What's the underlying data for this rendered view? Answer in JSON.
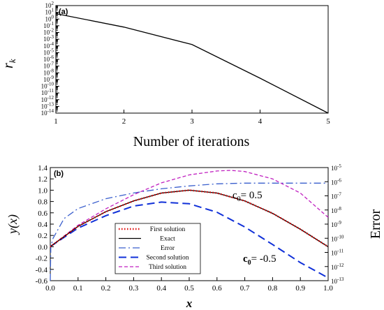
{
  "chart_data": [
    {
      "panel_label": "(a)",
      "type": "line",
      "xlabel": "Number of iterations",
      "ylabel_base": "r",
      "ylabel_sub": "k",
      "y_scale": "log",
      "x_ticks": [
        "1",
        "2",
        "3",
        "4",
        "5"
      ],
      "y_tick_exponents": [
        2,
        1,
        0,
        -1,
        -2,
        -3,
        -4,
        -5,
        -6,
        -7,
        -8,
        -9,
        -10,
        -11,
        -12,
        -13,
        -14
      ],
      "y_tick_base": "10",
      "xlim": [
        1,
        5
      ],
      "ylim_log10": [
        -14,
        2
      ],
      "x": [
        1,
        2,
        3,
        4,
        5
      ],
      "log10_y": [
        0.8,
        -1.2,
        -3.8,
        -8.8,
        -14.0
      ],
      "grid": false
    },
    {
      "panel_label": "(b)",
      "type": "line",
      "xlabel": "x",
      "ylabel_left": "y(x)",
      "ylabel_right": "Error",
      "xlim": [
        0,
        1
      ],
      "ylim_left": [
        -0.6,
        1.4
      ],
      "ylim_right_log10": [
        -13,
        -5
      ],
      "x_ticks": [
        "0.0",
        "0.1",
        "0.2",
        "0.3",
        "0.4",
        "0.5",
        "0.6",
        "0.7",
        "0.8",
        "0.9",
        "1.0"
      ],
      "y_left_ticks": [
        "-0.6",
        "-0.4",
        "-0.2",
        "0.0",
        "0.2",
        "0.4",
        "0.6",
        "0.8",
        "1.0",
        "1.2",
        "1.4"
      ],
      "y_right_tick_exponents": [
        -5,
        -6,
        -7,
        -8,
        -9,
        -10,
        -11,
        -12,
        -13
      ],
      "y_right_tick_base": "10",
      "grid": false,
      "legend_position": "bottom-left",
      "annotations": [
        {
          "text_base": "c",
          "text_sub": "0",
          "text_rest": "= 0.5"
        },
        {
          "text_base": "c",
          "text_sub": "0",
          "text_rest": "= -0.5"
        }
      ],
      "series": [
        {
          "name": "First solution",
          "color": "#e01010",
          "style": "dotted",
          "axis": "left",
          "x": [
            0.0,
            0.005,
            0.1,
            0.2,
            0.3,
            0.4,
            0.5,
            0.6,
            0.7,
            0.8,
            0.9,
            1.0
          ],
          "y": [
            0.0,
            0.02,
            0.36,
            0.62,
            0.81,
            0.95,
            1.0,
            0.95,
            0.81,
            0.59,
            0.31,
            0.0
          ]
        },
        {
          "name": "Exact",
          "color": "#000000",
          "style": "solid",
          "axis": "left",
          "x": [
            0.0,
            0.005,
            0.1,
            0.2,
            0.3,
            0.4,
            0.5,
            0.6,
            0.7,
            0.8,
            0.9,
            1.0
          ],
          "y": [
            0.0,
            0.02,
            0.36,
            0.62,
            0.81,
            0.95,
            1.0,
            0.95,
            0.81,
            0.59,
            0.31,
            0.0
          ]
        },
        {
          "name": "Error",
          "color": "#3a5fcd",
          "style": "dashdot",
          "axis": "right",
          "x": [
            0.0,
            0.002,
            0.01,
            0.05,
            0.1,
            0.2,
            0.3,
            0.4,
            0.5,
            0.6,
            0.7,
            0.8,
            0.9,
            1.0
          ],
          "log10_y": [
            -13.0,
            -10.6,
            -10.0,
            -8.6,
            -7.9,
            -7.2,
            -6.8,
            -6.5,
            -6.3,
            -6.15,
            -6.1,
            -6.1,
            -6.1,
            -6.1
          ]
        },
        {
          "name": "Second solution",
          "color": "#1030d8",
          "style": "longdash",
          "axis": "left",
          "x": [
            0.0,
            0.005,
            0.1,
            0.2,
            0.3,
            0.4,
            0.5,
            0.6,
            0.7,
            0.8,
            0.9,
            1.0
          ],
          "y": [
            0.0,
            0.02,
            0.33,
            0.55,
            0.72,
            0.79,
            0.76,
            0.61,
            0.35,
            0.04,
            -0.28,
            -0.55
          ]
        },
        {
          "name": "Third solution",
          "color": "#c020c0",
          "style": "dashed",
          "axis": "left",
          "x": [
            0.0,
            0.005,
            0.1,
            0.2,
            0.3,
            0.4,
            0.5,
            0.6,
            0.65,
            0.7,
            0.8,
            0.9,
            1.0
          ],
          "y": [
            0.0,
            0.02,
            0.38,
            0.67,
            0.92,
            1.13,
            1.27,
            1.34,
            1.35,
            1.33,
            1.2,
            0.95,
            0.52
          ]
        }
      ]
    }
  ]
}
